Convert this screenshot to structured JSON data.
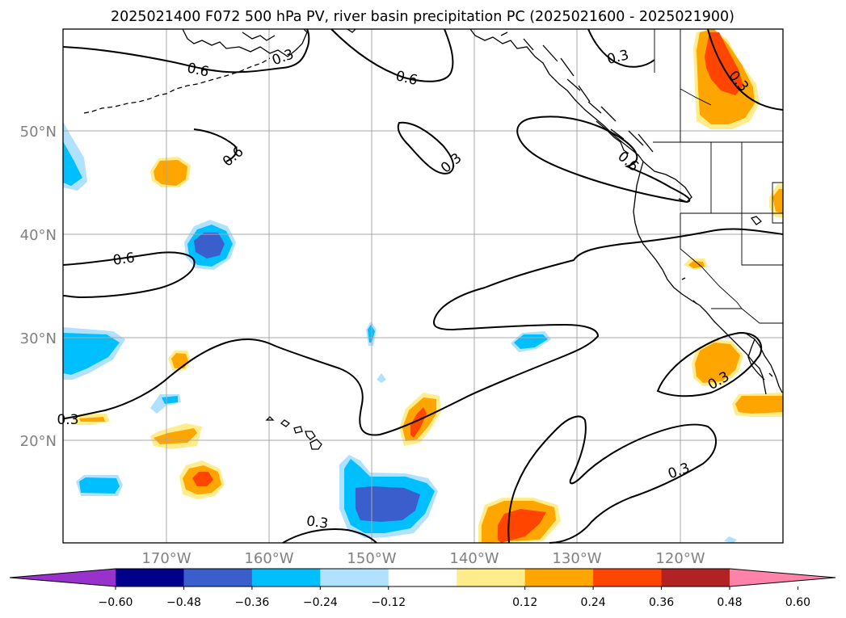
{
  "title": "2025021400 F072 500 hPa PV, river basin precipitation PC (2025021600 - 2025021900)",
  "map": {
    "lat_labels": [
      "50°N",
      "40°N",
      "30°N",
      "20°N"
    ],
    "lon_labels": [
      "170°W",
      "160°W",
      "150°W",
      "140°W",
      "130°W",
      "120°W"
    ],
    "pv_contour_labels": [
      "0.6",
      "0.3",
      "0.6",
      "0.3",
      "0.3",
      "0.6",
      "0.3",
      "0.6",
      "0.6",
      "0.3",
      "0.3",
      "0.3",
      "0.3"
    ]
  },
  "colorbar": {
    "ticks": [
      "−0.60",
      "−0.48",
      "−0.36",
      "−0.24",
      "−0.12",
      "0.12",
      "0.24",
      "0.36",
      "0.48",
      "0.60"
    ],
    "colors": [
      "#9932cc",
      "#00008b",
      "#3a5fcd",
      "#00bfff",
      "#b0e2ff",
      "#ffffff",
      "#ffec8b",
      "#ffa500",
      "#ff4500",
      "#b22222",
      "#ff82ab"
    ]
  }
}
